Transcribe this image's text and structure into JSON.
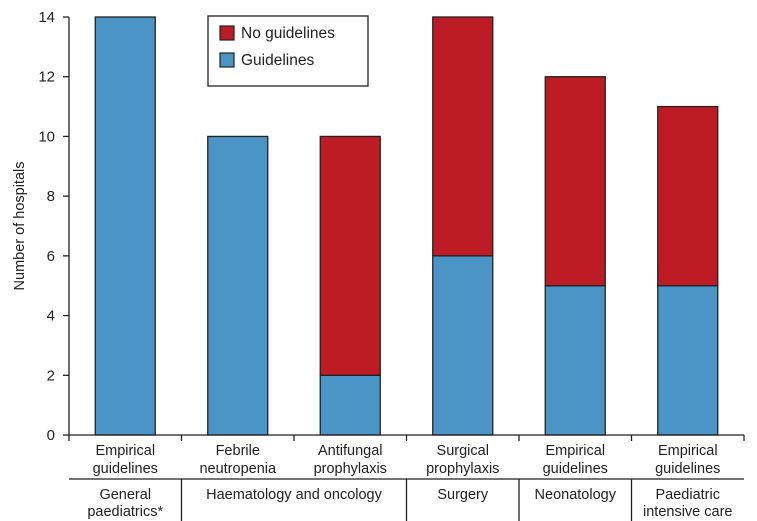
{
  "colors": {
    "guidelines": "#4a95c6",
    "no_guidelines": "#bd1c24",
    "axis": "#222222",
    "title_accent": "#c0262d"
  },
  "chart_data": {
    "type": "bar",
    "stacked": true,
    "ylabel": "Number of hospitals",
    "ylim": [
      0,
      14
    ],
    "yticks": [
      0,
      2,
      4,
      6,
      8,
      10,
      12,
      14
    ],
    "grid": false,
    "legend_position": "top-left",
    "categories": [
      {
        "line1": "Empirical",
        "line2": "guidelines"
      },
      {
        "line1": "Febrile",
        "line2": "neutropenia"
      },
      {
        "line1": "Antifungal",
        "line2": "prophylaxis"
      },
      {
        "line1": "Surgical",
        "line2": "prophylaxis"
      },
      {
        "line1": "Empirical",
        "line2": "guidelines"
      },
      {
        "line1": "Empirical",
        "line2": "guidelines"
      }
    ],
    "groups": [
      {
        "line1": "General",
        "line2": "paediatrics*",
        "span": [
          0,
          0
        ]
      },
      {
        "line1": "Haematology and oncology",
        "line2": "",
        "span": [
          1,
          2
        ]
      },
      {
        "line1": "Surgery",
        "line2": "",
        "span": [
          3,
          3
        ]
      },
      {
        "line1": "Neonatology",
        "line2": "",
        "span": [
          4,
          4
        ]
      },
      {
        "line1": "Paediatric",
        "line2": "intensive care",
        "span": [
          5,
          5
        ]
      }
    ],
    "series": [
      {
        "name": "Guidelines",
        "color": "#4a95c6",
        "values": [
          14,
          10,
          2,
          6,
          5,
          5
        ]
      },
      {
        "name": "No guidelines",
        "color": "#bd1c24",
        "values": [
          0,
          0,
          8,
          8,
          7,
          6
        ]
      }
    ],
    "legend": [
      "No guidelines",
      "Guidelines"
    ]
  }
}
